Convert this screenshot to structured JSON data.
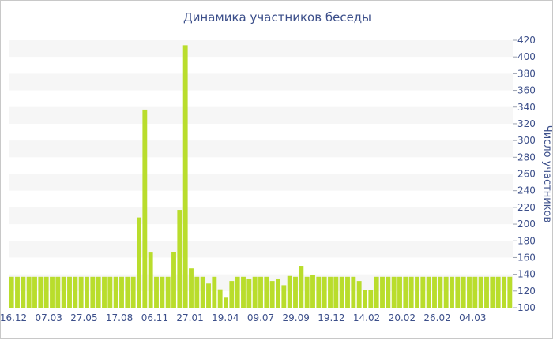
{
  "chart_data": {
    "type": "bar",
    "title": "Динамика участников беседы",
    "xlabel": "",
    "ylabel": "Число участников",
    "ylim": [
      100,
      420
    ],
    "y_ticks": [
      100,
      120,
      140,
      160,
      180,
      200,
      220,
      240,
      260,
      280,
      300,
      320,
      340,
      360,
      380,
      400,
      420
    ],
    "y_axis_position": "right",
    "grid": "alternating horizontal bands",
    "bar_color": "#b9dd2c",
    "band_color": "#f6f6f6",
    "text_color": "#3c4f8a",
    "x_tick_labels": [
      "16.12",
      "07.03",
      "27.05",
      "17.08",
      "06.11",
      "27.01",
      "19.04",
      "09.07",
      "29.09",
      "19.12",
      "14.02",
      "20.02",
      "26.02",
      "04.03"
    ],
    "values": [
      137,
      137,
      137,
      137,
      137,
      137,
      137,
      137,
      137,
      137,
      137,
      137,
      137,
      137,
      137,
      137,
      137,
      137,
      137,
      137,
      137,
      137,
      208,
      337,
      166,
      137,
      137,
      137,
      167,
      217,
      414,
      147,
      137,
      137,
      129,
      137,
      122,
      112,
      132,
      137,
      137,
      134,
      137,
      137,
      137,
      132,
      134,
      127,
      138,
      137,
      150,
      137,
      139,
      137,
      137,
      137,
      137,
      137,
      137,
      137,
      132,
      121,
      121,
      137,
      137,
      137,
      137,
      137,
      137,
      137,
      137,
      137,
      137,
      137,
      137,
      137,
      137,
      137,
      137,
      137,
      137,
      137,
      137,
      137,
      137,
      137,
      137
    ]
  }
}
